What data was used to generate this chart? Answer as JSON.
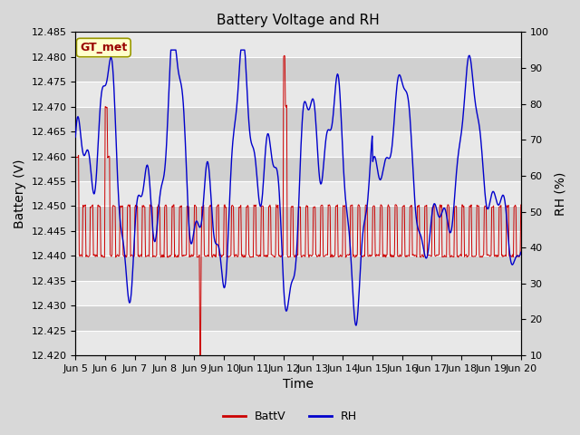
{
  "title": "Battery Voltage and RH",
  "xlabel": "Time",
  "ylabel_left": "Battery (V)",
  "ylabel_right": "RH (%)",
  "annotation_text": "GT_met",
  "ylim_left": [
    12.42,
    12.485
  ],
  "ylim_right": [
    10,
    100
  ],
  "yticks_left": [
    12.42,
    12.425,
    12.43,
    12.435,
    12.44,
    12.445,
    12.45,
    12.455,
    12.46,
    12.465,
    12.47,
    12.475,
    12.48,
    12.485
  ],
  "yticks_right": [
    10,
    20,
    30,
    40,
    50,
    60,
    70,
    80,
    90,
    100
  ],
  "background_color": "#d8d8d8",
  "plot_bg_light": "#e8e8e8",
  "plot_bg_dark": "#d0d0d0",
  "grid_color": "#ffffff",
  "line_color_batt": "#cc0000",
  "line_color_rh": "#0000cc",
  "legend_batt": "BattV",
  "legend_rh": "RH",
  "title_fontsize": 11,
  "axis_label_fontsize": 10,
  "tick_fontsize": 8,
  "annotation_bg": "#ffffcc",
  "annotation_text_color": "#990000",
  "annotation_border_color": "#999900",
  "figsize": [
    6.4,
    4.8
  ],
  "dpi": 100
}
